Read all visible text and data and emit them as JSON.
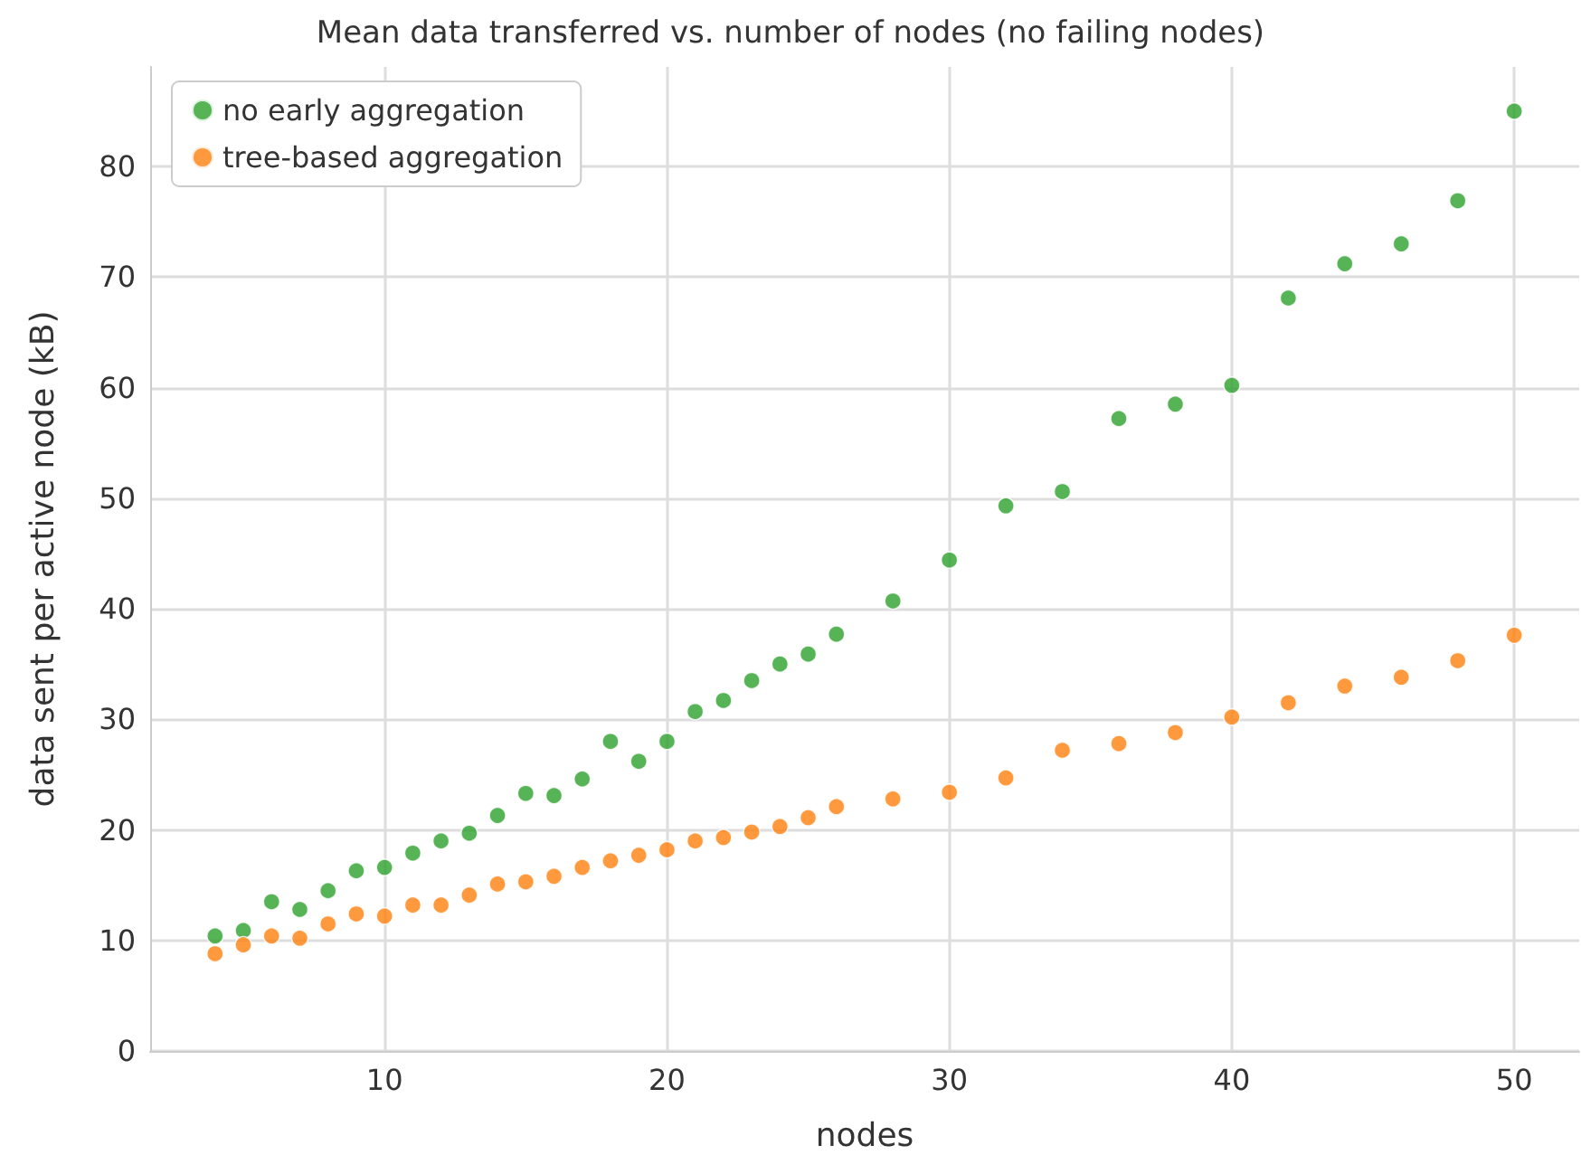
{
  "chart_data": {
    "type": "scatter",
    "title": "Mean data transferred vs. number of nodes (no failing nodes)",
    "xlabel": "nodes",
    "ylabel": "data sent per active node (kB)",
    "x": [
      4,
      5,
      6,
      7,
      8,
      9,
      10,
      11,
      12,
      13,
      14,
      15,
      16,
      17,
      18,
      19,
      20,
      21,
      22,
      23,
      24,
      25,
      26,
      28,
      30,
      32,
      34,
      36,
      38,
      40,
      42,
      44,
      46,
      48,
      50
    ],
    "series": [
      {
        "name": "no early aggregation",
        "color": "#2ca02c",
        "values": [
          10.4,
          10.9,
          13.5,
          12.8,
          14.5,
          16.3,
          16.6,
          17.9,
          19.0,
          19.7,
          21.3,
          23.3,
          23.1,
          24.6,
          28.0,
          26.2,
          28.0,
          30.7,
          31.7,
          33.5,
          35.0,
          35.9,
          37.7,
          40.7,
          44.4,
          49.3,
          50.6,
          57.2,
          58.5,
          60.2,
          68.1,
          71.2,
          73.0,
          76.9,
          85.0
        ]
      },
      {
        "name": "tree-based aggregation",
        "color": "#ff7f0e",
        "values": [
          8.8,
          9.6,
          10.4,
          10.2,
          11.5,
          12.4,
          12.2,
          13.2,
          13.2,
          14.1,
          15.1,
          15.3,
          15.8,
          16.6,
          17.2,
          17.7,
          18.2,
          19.0,
          19.3,
          19.8,
          20.3,
          21.1,
          22.1,
          22.8,
          23.4,
          24.7,
          27.2,
          27.8,
          28.8,
          30.2,
          31.5,
          33.0,
          33.8,
          35.3,
          37.6
        ]
      }
    ],
    "xlim": [
      1.7,
      52.3
    ],
    "xticks": [
      10,
      20,
      30,
      40,
      50
    ],
    "ylim": [
      0,
      89
    ],
    "yticks": [
      0,
      10,
      20,
      30,
      40,
      50,
      60,
      70,
      80
    ],
    "grid": true,
    "legend": "top left",
    "marker": "circle"
  }
}
